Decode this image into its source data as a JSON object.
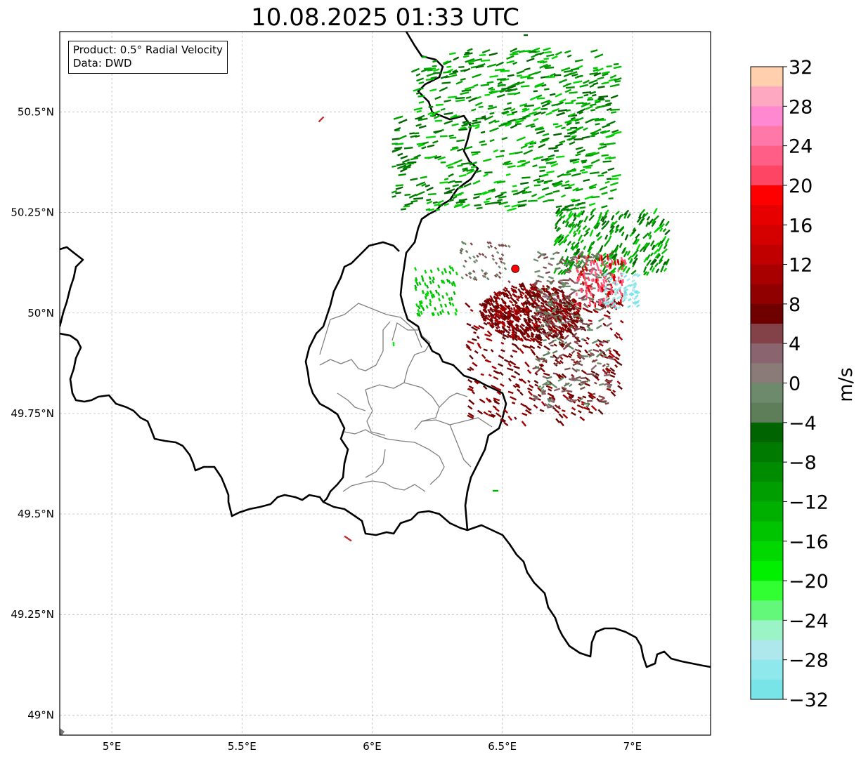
{
  "title": "10.08.2025 01:33 UTC",
  "info_box": {
    "product_line": "Product: 0.5° Radial Velocity",
    "data_line": "Data: DWD"
  },
  "map": {
    "lon_range": [
      4.8,
      7.3
    ],
    "lat_range": [
      48.95,
      50.7
    ],
    "lon_ticks": [
      {
        "value": 5.0,
        "label": "5°E"
      },
      {
        "value": 5.5,
        "label": "5.5°E"
      },
      {
        "value": 6.0,
        "label": "6°E"
      },
      {
        "value": 6.5,
        "label": "6.5°E"
      },
      {
        "value": 7.0,
        "label": "7°E"
      }
    ],
    "lat_ticks": [
      {
        "value": 49.0,
        "label": "49°N"
      },
      {
        "value": 49.25,
        "label": "49.25°N"
      },
      {
        "value": 49.5,
        "label": "49.5°N"
      },
      {
        "value": 49.75,
        "label": "49.75°N"
      },
      {
        "value": 50.0,
        "label": "50°N"
      },
      {
        "value": 50.25,
        "label": "50.25°N"
      },
      {
        "value": 50.5,
        "label": "50.5°N"
      }
    ],
    "gridlines": true,
    "radar_site": {
      "lon": 6.55,
      "lat": 50.11,
      "color": "#ff0000"
    }
  },
  "colorbar": {
    "unit": "m/s",
    "min": -32,
    "max": 32,
    "step": 2,
    "ticks": [
      {
        "value": 32,
        "label": "32"
      },
      {
        "value": 28,
        "label": "28"
      },
      {
        "value": 24,
        "label": "24"
      },
      {
        "value": 20,
        "label": "20"
      },
      {
        "value": 16,
        "label": "16"
      },
      {
        "value": 12,
        "label": "12"
      },
      {
        "value": 8,
        "label": "8"
      },
      {
        "value": 4,
        "label": "4"
      },
      {
        "value": 0,
        "label": "0"
      },
      {
        "value": -4,
        "label": "−4"
      },
      {
        "value": -8,
        "label": "−8"
      },
      {
        "value": -12,
        "label": "−12"
      },
      {
        "value": -16,
        "label": "−16"
      },
      {
        "value": -20,
        "label": "−20"
      },
      {
        "value": -24,
        "label": "−24"
      },
      {
        "value": -28,
        "label": "−28"
      },
      {
        "value": -32,
        "label": "−32"
      }
    ],
    "colors_top_to_bottom": [
      "#ffcfae",
      "#ffa8c2",
      "#ff88d0",
      "#ff78a8",
      "#ff5e86",
      "#ff4564",
      "#ff0000",
      "#e60000",
      "#d40000",
      "#c00000",
      "#a80000",
      "#900000",
      "#6e0000",
      "#834248",
      "#8a646e",
      "#8a7a78",
      "#6e8a6c",
      "#5e7e5a",
      "#006400",
      "#007a00",
      "#008c00",
      "#009e00",
      "#00b000",
      "#00c400",
      "#00d800",
      "#00f000",
      "#32ff32",
      "#64f87a",
      "#9af4c6",
      "#aee8ec",
      "#8ee8ec",
      "#78e4e8"
    ]
  }
}
